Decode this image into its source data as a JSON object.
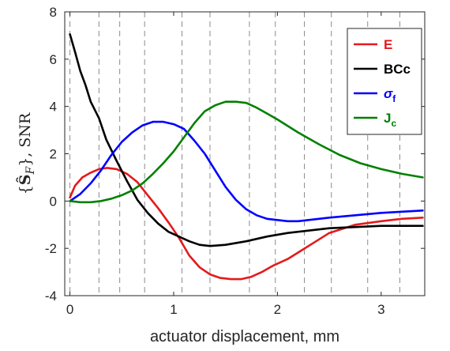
{
  "chart_data": {
    "type": "line",
    "xlabel": "actuator displacement, mm",
    "ylabel": "{Ŝ_F}, SNR",
    "ylabel_parts": {
      "open": "{",
      "symbol": "Ŝ",
      "sub": "F",
      "close": "}, SNR"
    },
    "xlim": [
      -0.05,
      3.42
    ],
    "ylim": [
      -4,
      8
    ],
    "xticks": [
      0,
      1,
      2,
      3
    ],
    "yticks": [
      -4,
      -2,
      0,
      2,
      4,
      6,
      8
    ],
    "xtick_labels": [
      "0",
      "1",
      "2",
      "3"
    ],
    "ytick_labels": [
      "-4",
      "-2",
      "0",
      "2",
      "4",
      "6",
      "8"
    ],
    "grid": "vertical dashed",
    "vlines": [
      0,
      0.28,
      0.48,
      0.72,
      1.08,
      1.35,
      1.73,
      1.98,
      2.26,
      2.52,
      2.87,
      3.18
    ],
    "legend_position": "top-right",
    "series": [
      {
        "name": "E",
        "name_main": "E",
        "name_sub": "",
        "color": "#e41a1c",
        "x": [
          0,
          0.05,
          0.12,
          0.2,
          0.28,
          0.36,
          0.45,
          0.55,
          0.65,
          0.75,
          0.85,
          0.95,
          1.05,
          1.15,
          1.25,
          1.35,
          1.45,
          1.55,
          1.65,
          1.75,
          1.85,
          1.95,
          2.1,
          2.3,
          2.5,
          2.75,
          3.0,
          3.2,
          3.4
        ],
        "y": [
          0.15,
          0.65,
          1.0,
          1.2,
          1.35,
          1.4,
          1.35,
          1.15,
          0.8,
          0.25,
          -0.3,
          -0.9,
          -1.55,
          -2.3,
          -2.8,
          -3.1,
          -3.25,
          -3.3,
          -3.3,
          -3.2,
          -3.0,
          -2.75,
          -2.45,
          -1.9,
          -1.35,
          -1.0,
          -0.85,
          -0.75,
          -0.7
        ]
      },
      {
        "name": "BCc",
        "name_main": "BCc",
        "name_sub": "",
        "color": "#000000",
        "x": [
          0,
          0.05,
          0.1,
          0.15,
          0.2,
          0.28,
          0.35,
          0.45,
          0.55,
          0.65,
          0.75,
          0.85,
          0.95,
          1.05,
          1.15,
          1.25,
          1.35,
          1.5,
          1.7,
          1.9,
          2.1,
          2.3,
          2.5,
          2.75,
          3.0,
          3.2,
          3.4
        ],
        "y": [
          7.05,
          6.3,
          5.5,
          4.9,
          4.2,
          3.5,
          2.6,
          1.7,
          0.85,
          0.05,
          -0.5,
          -0.95,
          -1.3,
          -1.5,
          -1.7,
          -1.85,
          -1.9,
          -1.85,
          -1.7,
          -1.5,
          -1.35,
          -1.25,
          -1.15,
          -1.1,
          -1.05,
          -1.05,
          -1.05
        ]
      },
      {
        "name": "σf",
        "name_main": "σ",
        "name_sub": "f",
        "color": "#0000ff",
        "x": [
          0,
          0.1,
          0.2,
          0.3,
          0.4,
          0.5,
          0.6,
          0.7,
          0.8,
          0.9,
          1.0,
          1.1,
          1.2,
          1.3,
          1.4,
          1.5,
          1.6,
          1.7,
          1.8,
          1.9,
          2.0,
          2.1,
          2.2,
          2.3,
          2.5,
          2.75,
          3.0,
          3.2,
          3.4
        ],
        "y": [
          0,
          0.3,
          0.75,
          1.3,
          1.95,
          2.5,
          2.9,
          3.2,
          3.35,
          3.35,
          3.25,
          3.05,
          2.55,
          2.0,
          1.3,
          0.6,
          0.05,
          -0.35,
          -0.6,
          -0.75,
          -0.8,
          -0.85,
          -0.85,
          -0.8,
          -0.7,
          -0.6,
          -0.5,
          -0.45,
          -0.4
        ]
      },
      {
        "name": "Jc",
        "name_main": "J",
        "name_sub": "c",
        "color": "#008000",
        "x": [
          0,
          0.1,
          0.2,
          0.3,
          0.4,
          0.5,
          0.6,
          0.7,
          0.8,
          0.9,
          1.0,
          1.1,
          1.2,
          1.3,
          1.4,
          1.5,
          1.6,
          1.7,
          1.8,
          1.9,
          2.0,
          2.2,
          2.4,
          2.6,
          2.8,
          3.0,
          3.2,
          3.4
        ],
        "y": [
          0,
          -0.05,
          -0.05,
          0.0,
          0.1,
          0.25,
          0.45,
          0.75,
          1.15,
          1.6,
          2.1,
          2.7,
          3.3,
          3.8,
          4.05,
          4.2,
          4.2,
          4.15,
          3.95,
          3.7,
          3.45,
          2.9,
          2.4,
          1.95,
          1.6,
          1.35,
          1.15,
          1.0
        ]
      }
    ]
  }
}
